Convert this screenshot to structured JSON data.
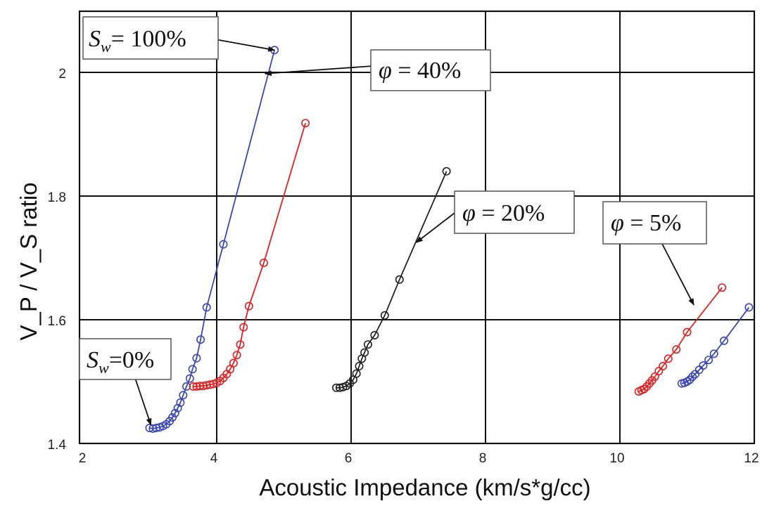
{
  "chart_data": {
    "type": "scatter",
    "xlabel": "Acoustic Impedance (km/s*g/cc)",
    "ylabel": "V_P / V_S ratio",
    "xlim": [
      2,
      12
    ],
    "ylim": [
      1.4,
      2.1
    ],
    "xticks": [
      "2",
      "4",
      "6",
      "8",
      "10",
      "12"
    ],
    "yticks": [
      "1.4",
      "1.6",
      "1.8",
      "2"
    ],
    "grid": true,
    "series": [
      {
        "color": "#3a46b8",
        "points": [
          [
            3.0,
            1.425
          ],
          [
            3.05,
            1.424
          ],
          [
            3.1,
            1.425
          ],
          [
            3.15,
            1.426
          ],
          [
            3.2,
            1.428
          ],
          [
            3.25,
            1.431
          ],
          [
            3.3,
            1.436
          ],
          [
            3.34,
            1.442
          ],
          [
            3.38,
            1.449
          ],
          [
            3.42,
            1.457
          ],
          [
            3.46,
            1.466
          ],
          [
            3.5,
            1.478
          ],
          [
            3.55,
            1.492
          ],
          [
            3.6,
            1.505
          ],
          [
            3.64,
            1.52
          ],
          [
            3.7,
            1.538
          ],
          [
            3.76,
            1.568
          ],
          [
            3.85,
            1.62
          ],
          [
            4.1,
            1.722
          ],
          [
            4.86,
            2.036
          ]
        ]
      },
      {
        "color": "#e02020",
        "points": [
          [
            3.65,
            1.492
          ],
          [
            3.7,
            1.492
          ],
          [
            3.75,
            1.493
          ],
          [
            3.8,
            1.493
          ],
          [
            3.85,
            1.494
          ],
          [
            3.9,
            1.495
          ],
          [
            3.95,
            1.496
          ],
          [
            4.0,
            1.498
          ],
          [
            4.05,
            1.501
          ],
          [
            4.1,
            1.506
          ],
          [
            4.15,
            1.512
          ],
          [
            4.2,
            1.52
          ],
          [
            4.25,
            1.53
          ],
          [
            4.3,
            1.543
          ],
          [
            4.35,
            1.56
          ],
          [
            4.4,
            1.588
          ],
          [
            4.48,
            1.622
          ],
          [
            4.7,
            1.692
          ],
          [
            5.32,
            1.918
          ]
        ]
      },
      {
        "color": "#222222",
        "points": [
          [
            5.78,
            1.49
          ],
          [
            5.83,
            1.49
          ],
          [
            5.88,
            1.491
          ],
          [
            5.93,
            1.493
          ],
          [
            5.98,
            1.497
          ],
          [
            6.03,
            1.503
          ],
          [
            6.08,
            1.513
          ],
          [
            6.12,
            1.525
          ],
          [
            6.16,
            1.537
          ],
          [
            6.2,
            1.547
          ],
          [
            6.25,
            1.56
          ],
          [
            6.35,
            1.575
          ],
          [
            6.5,
            1.607
          ],
          [
            6.72,
            1.665
          ],
          [
            7.42,
            1.84
          ]
        ]
      },
      {
        "color": "#e02020",
        "points": [
          [
            10.28,
            1.484
          ],
          [
            10.32,
            1.486
          ],
          [
            10.36,
            1.488
          ],
          [
            10.4,
            1.492
          ],
          [
            10.44,
            1.497
          ],
          [
            10.48,
            1.502
          ],
          [
            10.52,
            1.508
          ],
          [
            10.58,
            1.517
          ],
          [
            10.64,
            1.525
          ],
          [
            10.72,
            1.537
          ],
          [
            10.84,
            1.552
          ],
          [
            11.0,
            1.58
          ],
          [
            11.52,
            1.652
          ]
        ]
      },
      {
        "color": "#3a46b8",
        "points": [
          [
            10.92,
            1.497
          ],
          [
            10.96,
            1.498
          ],
          [
            11.0,
            1.5
          ],
          [
            11.04,
            1.503
          ],
          [
            11.08,
            1.508
          ],
          [
            11.12,
            1.512
          ],
          [
            11.18,
            1.519
          ],
          [
            11.24,
            1.526
          ],
          [
            11.32,
            1.535
          ],
          [
            11.4,
            1.545
          ],
          [
            11.55,
            1.566
          ],
          [
            11.92,
            1.62
          ]
        ]
      }
    ],
    "annotations": [
      {
        "id": "sw100",
        "base": "S",
        "sub": "w",
        "text": "= 100%",
        "arrow_to": [
          4.86,
          2.036
        ]
      },
      {
        "id": "phi40",
        "base": "φ",
        "sub": "",
        "text": " = 40%",
        "arrow_to": [
          4.72,
          1.998
        ]
      },
      {
        "id": "phi20",
        "base": "φ",
        "sub": "",
        "text": " = 20%",
        "arrow_to": [
          6.97,
          1.725
        ]
      },
      {
        "id": "phi5",
        "base": "φ",
        "sub": "",
        "text": " = 5%",
        "arrow_to": [
          11.1,
          1.624
        ]
      },
      {
        "id": "sw0",
        "base": "S",
        "sub": "w",
        "text": "=0%",
        "arrow_to": [
          3.02,
          1.43
        ]
      }
    ]
  }
}
